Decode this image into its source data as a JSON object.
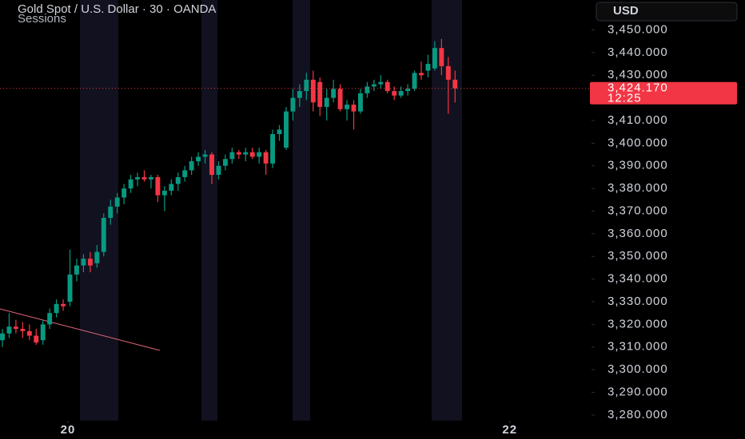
{
  "chart_data": {
    "type": "candlestick",
    "title": "Gold Spot / U.S. Dollar · 30 · OANDA",
    "indicator": "Sessions",
    "currency": "USD",
    "up_color": "#089981",
    "down_color": "#f23645",
    "xlim": [
      -0.355,
      87.2
    ],
    "xticks": [
      {
        "value": 9.7,
        "label": "20"
      },
      {
        "value": 75.1,
        "label": "22"
      }
    ],
    "ylim": [
      3277.5,
      3463.2
    ],
    "yticks": [
      {
        "value": 3280,
        "label": "3,280.000"
      },
      {
        "value": 3290,
        "label": "3,290.000"
      },
      {
        "value": 3300,
        "label": "3,300.000"
      },
      {
        "value": 3310,
        "label": "3,310.000"
      },
      {
        "value": 3320,
        "label": "3,320.000"
      },
      {
        "value": 3330,
        "label": "3,330.000"
      },
      {
        "value": 3340,
        "label": "3,340.000"
      },
      {
        "value": 3350,
        "label": "3,350.000"
      },
      {
        "value": 3360,
        "label": "3,360.000"
      },
      {
        "value": 3370,
        "label": "3,370.000"
      },
      {
        "value": 3380,
        "label": "3,380.000"
      },
      {
        "value": 3390,
        "label": "3,390.000"
      },
      {
        "value": 3400,
        "label": "3,400.000"
      },
      {
        "value": 3410,
        "label": "3,410.000"
      },
      {
        "value": 3430,
        "label": "3,430.000"
      },
      {
        "value": 3440,
        "label": "3,440.000"
      },
      {
        "value": 3450,
        "label": "3,450.000"
      }
    ],
    "last_price": {
      "value": 3424.17,
      "label": "3,424.170"
    },
    "countdown": "12:25",
    "open": [
      3313,
      3316,
      3319,
      3318,
      3317,
      3315,
      3313,
      3320,
      3325,
      3329,
      3330,
      3342,
      3346,
      3349,
      3347,
      3352,
      3367,
      3372,
      3376,
      3380,
      3384,
      3385,
      3384,
      3385,
      3377,
      3379,
      3382,
      3385,
      3388,
      3392,
      3394,
      3395,
      3386,
      3390,
      3393,
      3396,
      3395,
      3396,
      3394,
      3396,
      3391,
      3404,
      3398,
      3414,
      3420,
      3423,
      3428,
      3427,
      3416,
      3420,
      3424,
      3415,
      3417,
      3414,
      3422,
      3425,
      3426,
      3427,
      3423,
      3421,
      3423,
      3424,
      3431,
      3432,
      3433,
      3442,
      3434,
      3428
    ],
    "high": [
      3318,
      3325,
      3322,
      3321,
      3320,
      3318,
      3322,
      3327,
      3331,
      3331,
      3353,
      3349,
      3351,
      3352,
      3355,
      3369,
      3375,
      3378,
      3382,
      3386,
      3387,
      3388,
      3386,
      3386,
      3381,
      3384,
      3387,
      3390,
      3394,
      3396,
      3397,
      3396,
      3392,
      3395,
      3398,
      3397,
      3398,
      3398,
      3398,
      3397,
      3406,
      3408,
      3416,
      3424,
      3426,
      3431,
      3432,
      3429,
      3424,
      3428,
      3426,
      3419,
      3419,
      3424,
      3427,
      3428,
      3430,
      3428,
      3425,
      3425,
      3426,
      3432,
      3436,
      3439,
      3445,
      3446,
      3438,
      3432
    ],
    "low": [
      3310,
      3314,
      3316,
      3314,
      3313,
      3311,
      3311,
      3318,
      3323,
      3326,
      3328,
      3339,
      3343,
      3343,
      3345,
      3350,
      3364,
      3369,
      3373,
      3378,
      3381,
      3383,
      3380,
      3374,
      3370,
      3377,
      3379,
      3383,
      3386,
      3390,
      3391,
      3382,
      3384,
      3388,
      3391,
      3393,
      3392,
      3393,
      3391,
      3386,
      3389,
      3401,
      3397,
      3410,
      3416,
      3419,
      3414,
      3412,
      3410,
      3418,
      3414,
      3410,
      3406,
      3413,
      3420,
      3423,
      3424,
      3422,
      3419,
      3420,
      3421,
      3423,
      3428,
      3429,
      3432,
      3430,
      3413,
      3418
    ],
    "close": [
      3316,
      3319,
      3318,
      3317,
      3315,
      3312,
      3320,
      3325,
      3329,
      3328,
      3342,
      3346,
      3349,
      3346,
      3352,
      3367,
      3372,
      3376,
      3380,
      3384,
      3385,
      3384,
      3385,
      3377,
      3379,
      3382,
      3385,
      3388,
      3392,
      3394,
      3395,
      3386,
      3390,
      3393,
      3396,
      3395,
      3396,
      3394,
      3396,
      3391,
      3404,
      3406,
      3414,
      3420,
      3423,
      3428,
      3418,
      3416,
      3420,
      3424,
      3415,
      3417,
      3414,
      3422,
      3425,
      3426,
      3427,
      3423,
      3421,
      3423,
      3424,
      3431,
      3430,
      3435,
      3442,
      3434,
      3428,
      3424.17
    ]
  }
}
